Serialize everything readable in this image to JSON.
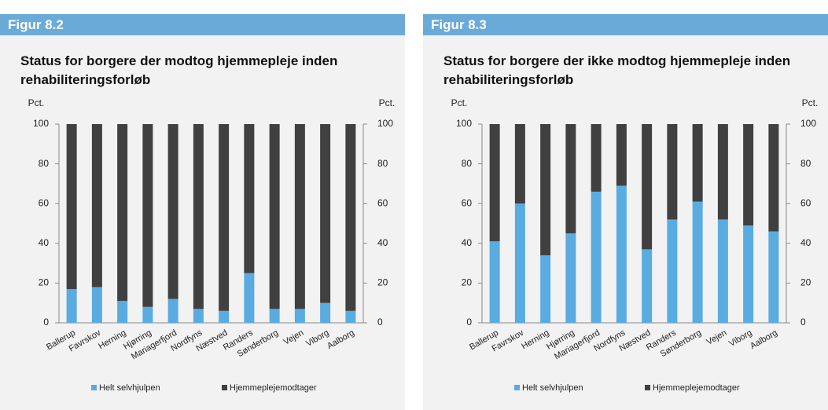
{
  "chart_data": [
    {
      "type": "stacked_bar",
      "figure_label": "Figur 8.2",
      "title": "Status for borgere der modtog hjemmepleje inden rehabiliteringsforløb",
      "ylabel": "Pct.",
      "y2label": "Pct.",
      "categories": [
        "Ballerup",
        "Favrskov",
        "Herning",
        "Hjørring",
        "Mariagerfjord",
        "Nordfyns",
        "Næstved",
        "Randers",
        "Sønderborg",
        "Vejen",
        "Viborg",
        "Aalborg"
      ],
      "series": [
        {
          "name": "Helt selvhjulpen",
          "color": "#5aabe0",
          "values": [
            17,
            18,
            11,
            8,
            12,
            7,
            6,
            25,
            7,
            7,
            10,
            6
          ]
        },
        {
          "name": "Hjemmeplejemodtager",
          "color": "#404040",
          "values": [
            83,
            82,
            89,
            92,
            88,
            93,
            94,
            75,
            93,
            93,
            90,
            94
          ]
        }
      ],
      "ylim": [
        0,
        100
      ],
      "yticks": [
        0,
        20,
        40,
        60,
        80,
        100
      ],
      "y2lim": [
        0,
        100
      ],
      "y2ticks": [
        0,
        20,
        40,
        60,
        80,
        100
      ]
    },
    {
      "type": "stacked_bar",
      "figure_label": "Figur 8.3",
      "title": "Status for borgere der ikke modtog hjemmepleje inden rehabiliteringsforløb",
      "ylabel": "Pct.",
      "y2label": "Pct.",
      "categories": [
        "Ballerup",
        "Favrskov",
        "Herning",
        "Hjørring",
        "Mariagerfjord",
        "Nordfyns",
        "Næstved",
        "Randers",
        "Sønderborg",
        "Vejen",
        "Viborg",
        "Aalborg"
      ],
      "series": [
        {
          "name": "Helt selvhjulpen",
          "color": "#5aabe0",
          "values": [
            41,
            60,
            34,
            45,
            66,
            69,
            37,
            52,
            61,
            52,
            49,
            46
          ]
        },
        {
          "name": "Hjemmeplejemodtager",
          "color": "#404040",
          "values": [
            59,
            40,
            66,
            55,
            34,
            31,
            63,
            48,
            39,
            48,
            51,
            54
          ]
        }
      ],
      "ylim": [
        0,
        100
      ],
      "yticks": [
        0,
        20,
        40,
        60,
        80,
        100
      ],
      "y2lim": [
        0,
        100
      ],
      "y2ticks": [
        0,
        20,
        40,
        60,
        80,
        100
      ]
    }
  ]
}
